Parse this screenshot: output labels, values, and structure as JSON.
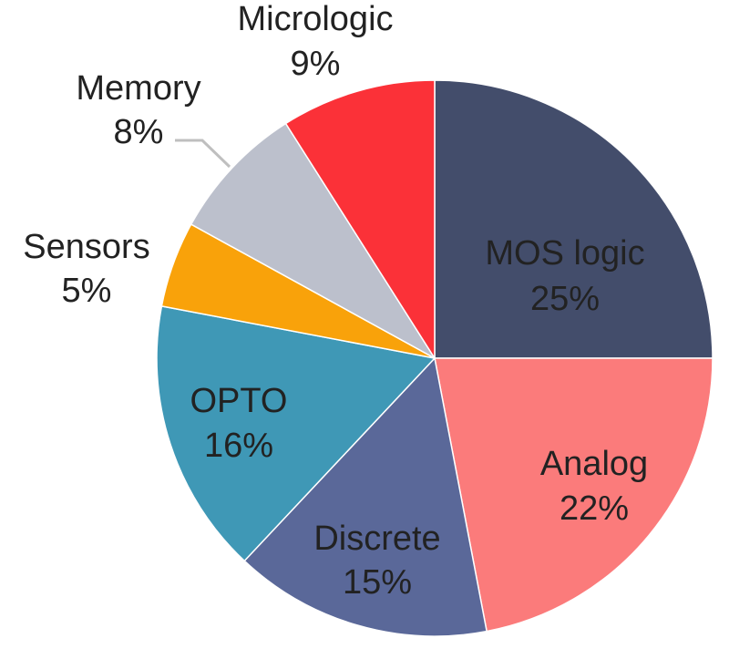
{
  "chart_data": {
    "type": "pie",
    "title": "",
    "slices": [
      {
        "label": "MOS logic",
        "value": 25,
        "pct": "25%",
        "color": "#434d6b"
      },
      {
        "label": "Analog",
        "value": 22,
        "pct": "22%",
        "color": "#fb7b7b"
      },
      {
        "label": "Discrete",
        "value": 15,
        "pct": "15%",
        "color": "#5a6899"
      },
      {
        "label": "OPTO",
        "value": 16,
        "pct": "16%",
        "color": "#3f98b6"
      },
      {
        "label": "Sensors",
        "value": 5,
        "pct": "5%",
        "color": "#f9a20a"
      },
      {
        "label": "Memory",
        "value": 8,
        "pct": "8%",
        "color": "#bcc0cc"
      },
      {
        "label": "Micrologic",
        "value": 9,
        "pct": "9%",
        "color": "#fb3138"
      }
    ],
    "start_angle": "12 o'clock",
    "direction": "clockwise",
    "label_placement": "inside for large slices, outside for small slices",
    "leader_line_color": "#bfbfbf"
  }
}
